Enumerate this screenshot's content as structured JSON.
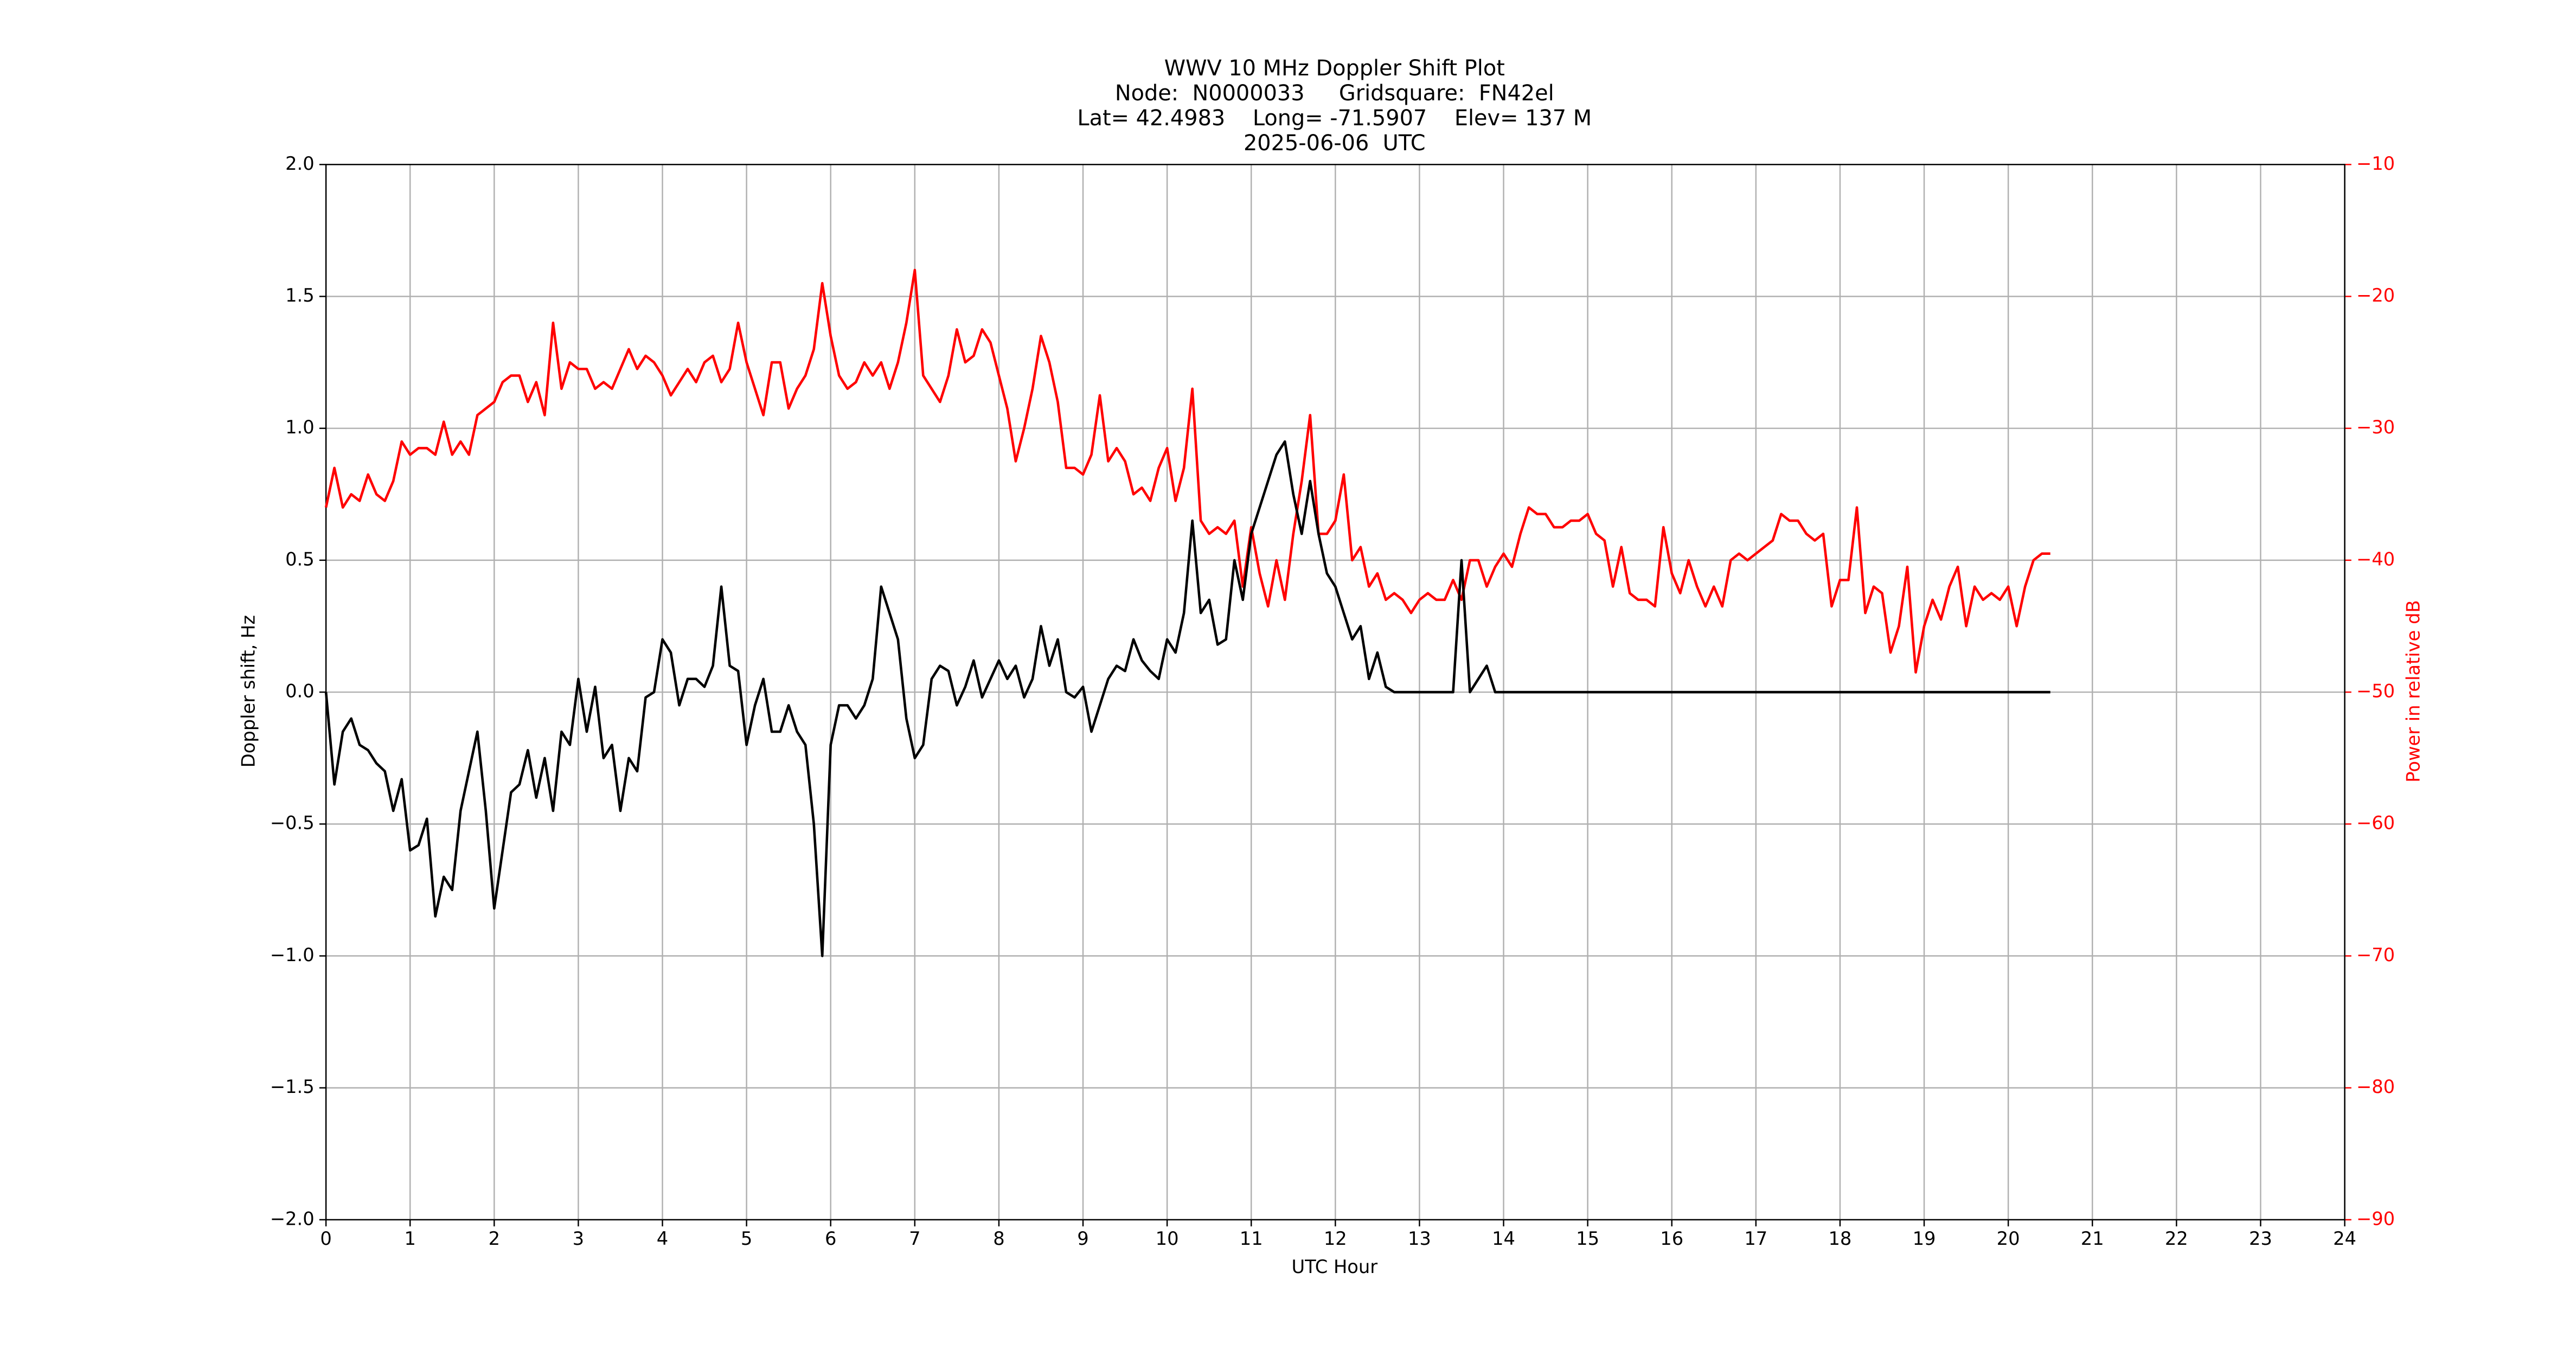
{
  "chart_data": {
    "type": "line",
    "title": "WWV 10 MHz Doppler Shift Plot",
    "subtitle": [
      "Node:  N0000033     Gridsquare:  FN42el",
      "Lat= 42.4983    Long= -71.5907    Elev= 137 M",
      "2025-06-06  UTC"
    ],
    "xlabel": "UTC Hour",
    "ylabel": "Doppler shift, Hz",
    "y2label": "Power in relative dB",
    "grid": true,
    "x": [
      0,
      0.1,
      0.2,
      0.3,
      0.4,
      0.5,
      0.6,
      0.7,
      0.8,
      0.9,
      1,
      1.1,
      1.2,
      1.3,
      1.4,
      1.5,
      1.6,
      1.7,
      1.8,
      1.9,
      2,
      2.1,
      2.2,
      2.3,
      2.4,
      2.5,
      2.6,
      2.7,
      2.8,
      2.9,
      3,
      3.1,
      3.2,
      3.3,
      3.4,
      3.5,
      3.6,
      3.7,
      3.8,
      3.9,
      4,
      4.1,
      4.2,
      4.3,
      4.4,
      4.5,
      4.6,
      4.7,
      4.8,
      4.9,
      5,
      5.1,
      5.2,
      5.3,
      5.4,
      5.5,
      5.6,
      5.7,
      5.8,
      5.9,
      6,
      6.1,
      6.2,
      6.3,
      6.4,
      6.5,
      6.6,
      6.7,
      6.8,
      6.9,
      7,
      7.1,
      7.2,
      7.3,
      7.4,
      7.5,
      7.6,
      7.7,
      7.8,
      7.9,
      8,
      8.1,
      8.2,
      8.3,
      8.4,
      8.5,
      8.6,
      8.7,
      8.8,
      8.9,
      9,
      9.1,
      9.2,
      9.3,
      9.4,
      9.5,
      9.6,
      9.7,
      9.8,
      9.9,
      10,
      10.1,
      10.2,
      10.3,
      10.4,
      10.5,
      10.6,
      10.7,
      10.8,
      10.9,
      11,
      11.1,
      11.2,
      11.3,
      11.4,
      11.5,
      11.6,
      11.7,
      11.8,
      11.9,
      12,
      12.1,
      12.2,
      12.3,
      12.4,
      12.5,
      12.6,
      12.7,
      12.8,
      12.9,
      13,
      13.1,
      13.2,
      13.3,
      13.4,
      13.5,
      13.6,
      13.7,
      13.8,
      13.9,
      14,
      14.1,
      14.2,
      14.3,
      14.4,
      14.5,
      14.6,
      14.7,
      14.8,
      14.9,
      15,
      15.1,
      15.2,
      15.3,
      15.4,
      15.5,
      15.6,
      15.7,
      15.8,
      15.9,
      16,
      16.1,
      16.2,
      16.3,
      16.4,
      16.5,
      16.6,
      16.7,
      16.8,
      16.9,
      17,
      17.1,
      17.2,
      17.3,
      17.4,
      17.5,
      17.6,
      17.7,
      17.8,
      17.9,
      18,
      18.1,
      18.2,
      18.3,
      18.4,
      18.5,
      18.6,
      18.7,
      18.8,
      18.9,
      19,
      19.1,
      19.2,
      19.3,
      19.4,
      19.5,
      19.6,
      19.7,
      19.8,
      19.9,
      20,
      20.1,
      20.2,
      20.3,
      20.4,
      20.5
    ],
    "series": [
      {
        "name": "Doppler shift",
        "color": "#000000",
        "axis": "y",
        "values": [
          0,
          -0.35,
          -0.15,
          -0.1,
          -0.2,
          -0.22,
          -0.27,
          -0.3,
          -0.45,
          -0.33,
          -0.6,
          -0.58,
          -0.48,
          -0.85,
          -0.7,
          -0.75,
          -0.45,
          -0.3,
          -0.15,
          -0.45,
          -0.82,
          -0.6,
          -0.38,
          -0.35,
          -0.22,
          -0.4,
          -0.25,
          -0.45,
          -0.15,
          -0.2,
          0.05,
          -0.15,
          0.02,
          -0.25,
          -0.2,
          -0.45,
          -0.25,
          -0.3,
          -0.02,
          0,
          0.2,
          0.15,
          -0.05,
          0.05,
          0.05,
          0.02,
          0.1,
          0.4,
          0.1,
          0.08,
          -0.2,
          -0.05,
          0.05,
          -0.15,
          -0.15,
          -0.05,
          -0.15,
          -0.2,
          -0.5,
          -1,
          -0.2,
          -0.05,
          -0.05,
          -0.1,
          -0.05,
          0.05,
          0.4,
          0.3,
          0.2,
          -0.1,
          -0.25,
          -0.2,
          0.05,
          0.1,
          0.08,
          -0.05,
          0.02,
          0.12,
          -0.02,
          0.05,
          0.12,
          0.05,
          0.1,
          -0.02,
          0.05,
          0.25,
          0.1,
          0.2,
          0,
          -0.02,
          0.02,
          -0.15,
          -0.05,
          0.05,
          0.1,
          0.08,
          0.2,
          0.12,
          0.08,
          0.05,
          0.2,
          0.15,
          0.3,
          0.65,
          0.3,
          0.35,
          0.18,
          0.2,
          0.5,
          0.35,
          0.6,
          0.7,
          0.8,
          0.9,
          0.95,
          0.75,
          0.6,
          0.8,
          0.6,
          0.45,
          0.4,
          0.3,
          0.2,
          0.25,
          0.05,
          0.15,
          0.02,
          0,
          0,
          0,
          0,
          0,
          0,
          0,
          0,
          0.5,
          0,
          0.05,
          0.1,
          0,
          0,
          0,
          0,
          0,
          0,
          0,
          0,
          0,
          0,
          0,
          0,
          0,
          0,
          0,
          0,
          0,
          0,
          0,
          0,
          0,
          0,
          0,
          0,
          0,
          0,
          0,
          0,
          0,
          0,
          0,
          0,
          0,
          0,
          0,
          0,
          0,
          0,
          0,
          0,
          0,
          0,
          0,
          0,
          0,
          0,
          0,
          0,
          0,
          0,
          0,
          0,
          0,
          0,
          0,
          0,
          0,
          0,
          0,
          0,
          0,
          0,
          0,
          0,
          0,
          0,
          0
        ]
      },
      {
        "name": "Power",
        "color": "#ff0000",
        "axis": "y2",
        "values": [
          -36,
          -33,
          -36,
          -35,
          -35.5,
          -33.5,
          -35,
          -35.5,
          -34,
          -31,
          -32,
          -31.5,
          -31.5,
          -32,
          -29.5,
          -32,
          -31,
          -32,
          -29,
          -28.5,
          -28,
          -26.5,
          -26,
          -26,
          -28,
          -26.5,
          -29,
          -22,
          -27,
          -25,
          -25.5,
          -25.5,
          -27,
          -26.5,
          -27,
          -25.5,
          -24,
          -25.5,
          -24.5,
          -25,
          -26,
          -27.5,
          -26.5,
          -25.5,
          -26.5,
          -25,
          -24.5,
          -26.5,
          -25.5,
          -22,
          -25,
          -27,
          -29,
          -25,
          -25,
          -28.5,
          -27,
          -26,
          -24,
          -19,
          -23,
          -26,
          -27,
          -26.5,
          -25,
          -26,
          -25,
          -27,
          -25,
          -22,
          -18,
          -26,
          -27,
          -28,
          -26,
          -22.5,
          -25,
          -24.5,
          -22.5,
          -23.5,
          -26,
          -28.5,
          -32.5,
          -30,
          -27,
          -23,
          -25,
          -28,
          -33,
          -33,
          -33.5,
          -32,
          -27.5,
          -32.5,
          -31.5,
          -32.5,
          -35,
          -34.5,
          -35.5,
          -33,
          -31.5,
          -35.5,
          -33,
          -27,
          -37,
          -38,
          -37.5,
          -38,
          -37,
          -42,
          -37.5,
          -41,
          -43.5,
          -40,
          -43,
          -38,
          -34,
          -29,
          -38,
          -38,
          -37,
          -33.5,
          -40,
          -39,
          -42,
          -41,
          -43,
          -42.5,
          -43,
          -44,
          -43,
          -42.5,
          -43,
          -43,
          -41.5,
          -43,
          -40,
          -40,
          -42,
          -40.5,
          -39.5,
          -40.5,
          -38,
          -36,
          -36.5,
          -36.5,
          -37.5,
          -37.5,
          -37,
          -37,
          -36.5,
          -38,
          -38.5,
          -42,
          -39,
          -42.5,
          -43,
          -43,
          -43.5,
          -37.5,
          -41,
          -42.5,
          -40,
          -42,
          -43.5,
          -42,
          -43.5,
          -40,
          -39.5,
          -40,
          -39.5,
          -39,
          -38.5,
          -36.5,
          -37,
          -37,
          -38,
          -38.5,
          -38,
          -43.5,
          -41.5,
          -41.5,
          -36,
          -44,
          -42,
          -42.5,
          -47,
          -45,
          -40.5,
          -48.5,
          -45,
          -43,
          -44.5,
          -42,
          -40.5,
          -45,
          -42,
          -43,
          -42.5,
          -43,
          -42,
          -45,
          -42,
          -40,
          -39.5,
          -39.5
        ]
      }
    ],
    "xlim": [
      0,
      24
    ],
    "xticks": [
      0,
      1,
      2,
      3,
      4,
      5,
      6,
      7,
      8,
      9,
      10,
      11,
      12,
      13,
      14,
      15,
      16,
      17,
      18,
      19,
      20,
      21,
      22,
      23,
      24
    ],
    "ylim": [
      -2,
      2
    ],
    "yticks": [
      {
        "value": -2,
        "label": "−2.0"
      },
      {
        "value": -1.5,
        "label": "−1.5"
      },
      {
        "value": -1,
        "label": "−1.0"
      },
      {
        "value": -0.5,
        "label": "−0.5"
      },
      {
        "value": 0,
        "label": "0.0"
      },
      {
        "value": 0.5,
        "label": "0.5"
      },
      {
        "value": 1,
        "label": "1.0"
      },
      {
        "value": 1.5,
        "label": "1.5"
      },
      {
        "value": 2,
        "label": "2.0"
      }
    ],
    "y2lim": [
      -90,
      -10
    ],
    "y2ticks": [
      {
        "value": -90,
        "label": "−90"
      },
      {
        "value": -80,
        "label": "−80"
      },
      {
        "value": -70,
        "label": "−70"
      },
      {
        "value": -60,
        "label": "−60"
      },
      {
        "value": -50,
        "label": "−50"
      },
      {
        "value": -40,
        "label": "−40"
      },
      {
        "value": -30,
        "label": "−30"
      },
      {
        "value": -20,
        "label": "−20"
      },
      {
        "value": -10,
        "label": "−10"
      }
    ],
    "y2color": "#ff0000"
  }
}
